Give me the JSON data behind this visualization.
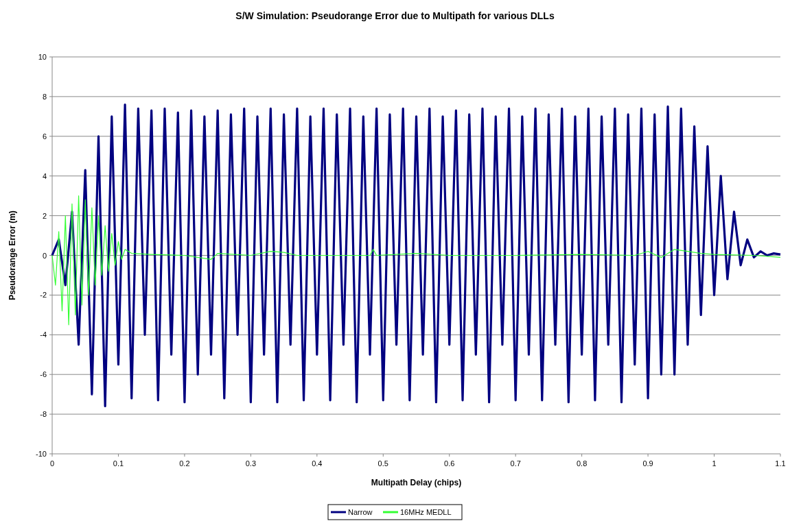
{
  "chart_data": {
    "type": "line",
    "title": "S/W Simulation: Pseudorange Error due to Multipath for various DLLs",
    "xlabel": "Multipath Delay (chips)",
    "ylabel": "Pseudorange Error (m)",
    "xlim": [
      0,
      1.1
    ],
    "xticks": [
      0,
      0.1,
      0.2,
      0.3,
      0.4,
      0.5,
      0.6,
      0.7,
      0.8,
      0.9,
      1,
      1.1
    ],
    "ylim": [
      -10,
      10
    ],
    "yticks": [
      -10,
      -8,
      -6,
      -4,
      -2,
      0,
      2,
      4,
      6,
      8,
      10
    ],
    "grid": "y",
    "legend": "bottom",
    "marker": "none",
    "line_style": "solid",
    "series": [
      {
        "name": "Narrow",
        "color": "#000080",
        "x": [
          0,
          0.01,
          0.02,
          0.03,
          0.04,
          0.05,
          0.06,
          0.07,
          0.08,
          0.09,
          0.1,
          0.11,
          0.12,
          0.13,
          0.14,
          0.15,
          0.16,
          0.17,
          0.18,
          0.19,
          0.2,
          0.21,
          0.22,
          0.23,
          0.24,
          0.25,
          0.26,
          0.27,
          0.28,
          0.29,
          0.3,
          0.31,
          0.32,
          0.33,
          0.34,
          0.35,
          0.36,
          0.37,
          0.38,
          0.39,
          0.4,
          0.41,
          0.42,
          0.43,
          0.44,
          0.45,
          0.46,
          0.47,
          0.48,
          0.49,
          0.5,
          0.51,
          0.52,
          0.53,
          0.54,
          0.55,
          0.56,
          0.57,
          0.58,
          0.59,
          0.6,
          0.61,
          0.62,
          0.63,
          0.64,
          0.65,
          0.66,
          0.67,
          0.68,
          0.69,
          0.7,
          0.71,
          0.72,
          0.73,
          0.74,
          0.75,
          0.76,
          0.77,
          0.78,
          0.79,
          0.8,
          0.81,
          0.82,
          0.83,
          0.84,
          0.85,
          0.86,
          0.87,
          0.88,
          0.89,
          0.9,
          0.91,
          0.92,
          0.93,
          0.94,
          0.95,
          0.96,
          0.97,
          0.98,
          0.99,
          1,
          1.01,
          1.02,
          1.03,
          1.04,
          1.05,
          1.06,
          1.07,
          1.08,
          1.09,
          1.1
        ],
        "values": [
          0,
          0.8,
          -1.5,
          2.2,
          -4.5,
          4.3,
          -7,
          6,
          -7.6,
          7,
          -5.5,
          7.6,
          -7.2,
          7.4,
          -4,
          7.3,
          -7.3,
          7.4,
          -5,
          7.2,
          -7.4,
          7.3,
          -6,
          7,
          -5,
          7.3,
          -7.2,
          7.1,
          -4,
          7.4,
          -7.4,
          7,
          -5,
          7.4,
          -7.4,
          7.1,
          -4.5,
          7.4,
          -7.3,
          7,
          -5,
          7.4,
          -7.3,
          7.1,
          -4.5,
          7.4,
          -7.4,
          7,
          -5,
          7.4,
          -7.3,
          7.1,
          -4.5,
          7.4,
          -7.3,
          7,
          -5,
          7.4,
          -7.4,
          7,
          -4.5,
          7.3,
          -7.3,
          7.1,
          -5,
          7.4,
          -7.4,
          7,
          -4.5,
          7.4,
          -7.3,
          7,
          -5,
          7.4,
          -7.3,
          7.1,
          -4.5,
          7.4,
          -7.4,
          7,
          -5,
          7.4,
          -7.3,
          7,
          -4.5,
          7.4,
          -7.4,
          7.1,
          -5.5,
          7.4,
          -7.2,
          7.1,
          -6,
          7.5,
          -6,
          7.4,
          -4.5,
          6.5,
          -3,
          5.5,
          -2,
          4,
          -1.2,
          2.2,
          -0.5,
          0.8,
          -0.1,
          0.2,
          0,
          0.1,
          0.05
        ]
      },
      {
        "name": "16MHz MEDLL",
        "color": "#33ff33",
        "x": [
          0,
          0.005,
          0.01,
          0.015,
          0.02,
          0.025,
          0.03,
          0.035,
          0.04,
          0.045,
          0.05,
          0.055,
          0.06,
          0.065,
          0.07,
          0.075,
          0.08,
          0.085,
          0.09,
          0.095,
          0.1,
          0.105,
          0.11,
          0.12,
          0.15,
          0.2,
          0.24,
          0.25,
          0.3,
          0.33,
          0.35,
          0.37,
          0.48,
          0.485,
          0.49,
          0.55,
          0.6,
          0.7,
          0.8,
          0.88,
          0.9,
          0.92,
          0.94,
          0.96,
          0.98,
          1,
          1.06,
          1.1
        ],
        "values": [
          0,
          -1.5,
          1.2,
          -2.8,
          2,
          -3.5,
          2.6,
          -3,
          3,
          -2.5,
          2.8,
          -2,
          2.4,
          -1.5,
          2,
          -1,
          1.5,
          -0.8,
          1.1,
          -0.5,
          0.7,
          -0.2,
          0.3,
          0.1,
          0.05,
          0,
          -0.2,
          0.1,
          0,
          0.2,
          0.15,
          0,
          0,
          0.3,
          0,
          0.1,
          0,
          0,
          0.05,
          0,
          0.2,
          -0.1,
          0.3,
          0.2,
          0.1,
          0.05,
          0,
          -0.1
        ]
      }
    ]
  }
}
